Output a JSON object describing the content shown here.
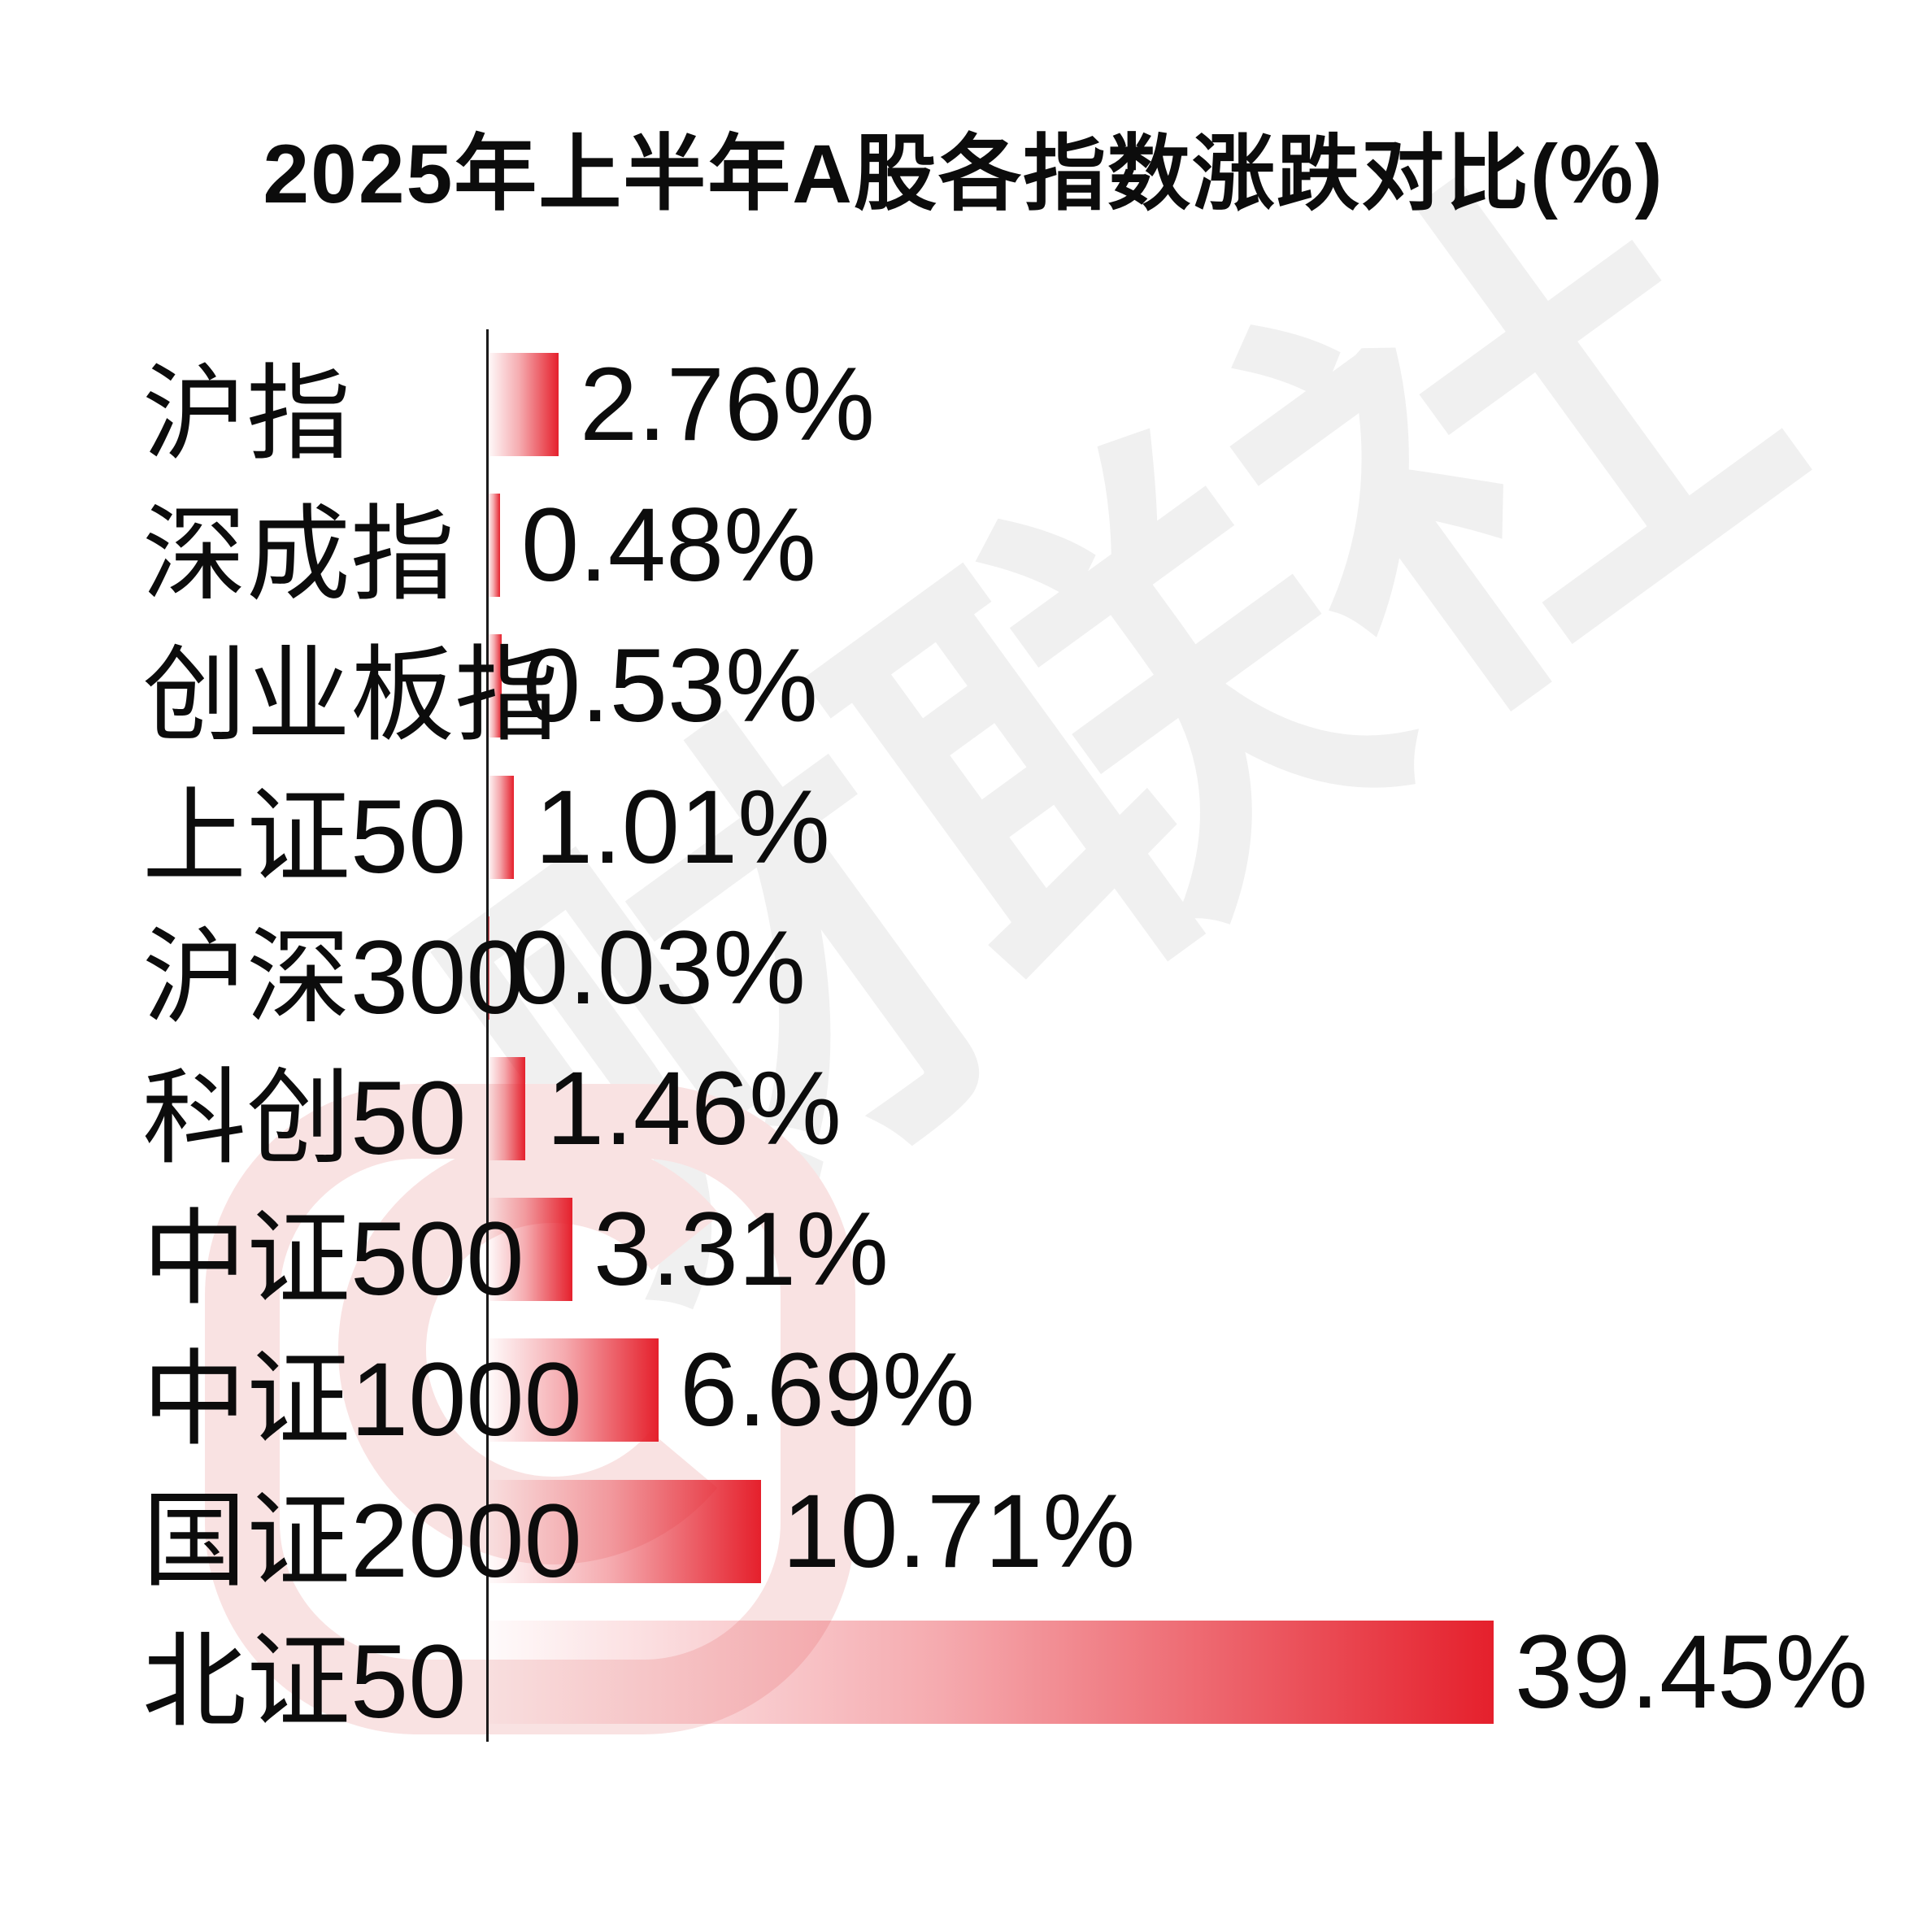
{
  "title": "2025年上半年A股各指数涨跌对比(%)",
  "watermark": {
    "text": "财联社",
    "logo": "cailianshe-logo"
  },
  "colors": {
    "bar_red": "#e5202c",
    "text": "#0c0c0c",
    "axis": "#1a1a1a",
    "watermark_text": "#f0f0f0",
    "watermark_logo": "#f9e2e2",
    "background": "#ffffff"
  },
  "chart_data": {
    "type": "bar",
    "orientation": "horizontal",
    "title": "2025年上半年A股各指数涨跌对比(%)",
    "categories": [
      "沪指",
      "深成指",
      "创业板指",
      "上证50",
      "沪深300",
      "科创50",
      "中证500",
      "中证1000",
      "国证2000",
      "北证50"
    ],
    "values": [
      2.76,
      0.48,
      0.53,
      1.01,
      0.03,
      1.46,
      3.31,
      6.69,
      10.71,
      39.45
    ],
    "value_labels": [
      "2.76%",
      "0.48%",
      "0.53%",
      "1.01%",
      "0.03%",
      "1.46%",
      "3.31%",
      "6.69%",
      "10.71%",
      "39.45%"
    ],
    "unit": "%",
    "xlim": [
      0,
      42
    ],
    "grid": false,
    "legend": false,
    "bar_style": "linear gradient from near-white (left) to solid red (right), square corners",
    "axis": "single vertical baseline at zero, no ticks"
  }
}
